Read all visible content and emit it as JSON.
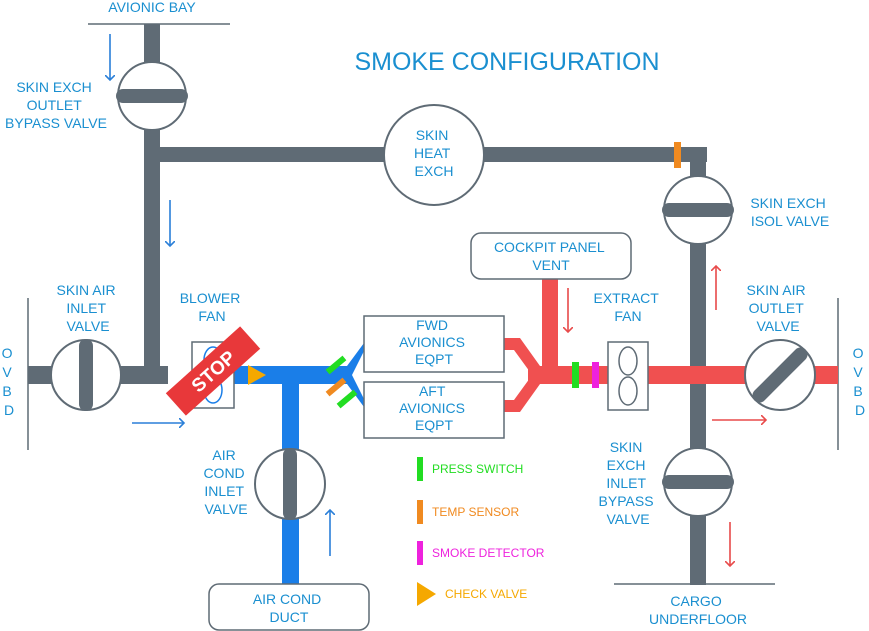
{
  "title": "SMOKE CONFIGURATION",
  "labels": {
    "avionic_bay": "AVIONIC BAY",
    "skin_exch_outlet_bypass_valve": [
      "SKIN EXCH",
      "OUTLET",
      "BYPASS VALVE"
    ],
    "skin_heat_exch": [
      "SKIN",
      "HEAT",
      "EXCH"
    ],
    "skin_exch_isol_valve": [
      "SKIN EXCH",
      "ISOL VALVE"
    ],
    "cockpit_panel_vent": [
      "COCKPIT PANEL",
      "VENT"
    ],
    "skin_air_inlet_valve": [
      "SKIN AIR",
      "INLET",
      "VALVE"
    ],
    "blower_fan": [
      "BLOWER",
      "FAN"
    ],
    "fwd_avionics_eqpt": [
      "FWD",
      "AVIONICS",
      "EQPT"
    ],
    "aft_avionics_eqpt": [
      "AFT",
      "AVIONICS",
      "EQPT"
    ],
    "extract_fan": [
      "EXTRACT",
      "FAN"
    ],
    "skin_air_outlet_valve": [
      "SKIN AIR",
      "OUTLET",
      "VALVE"
    ],
    "ovbd": [
      "O",
      "V",
      "B",
      "D"
    ],
    "air_cond_inlet_valve": [
      "AIR",
      "COND",
      "INLET",
      "VALVE"
    ],
    "skin_exch_inlet_bypass_valve": [
      "SKIN",
      "EXCH",
      "INLET",
      "BYPASS",
      "VALVE"
    ],
    "air_cond_duct": [
      "AIR COND",
      "DUCT"
    ],
    "cargo_underfloor": [
      "CARGO",
      "UNDERFLOOR"
    ],
    "stop": "STOP"
  },
  "legend": [
    {
      "label": "PRESS SWITCH",
      "color": "#22dd22",
      "shape": "bar"
    },
    {
      "label": "TEMP SENSOR",
      "color": "#f08a20",
      "shape": "bar"
    },
    {
      "label": "SMOKE DETECTOR",
      "color": "#ee22dd",
      "shape": "bar"
    },
    {
      "label": "CHECK VALVE",
      "color": "#f5a800",
      "shape": "triangle"
    }
  ],
  "colors": {
    "duct_grey": "#5f6b75",
    "duct_blue": "#1a7ee8",
    "duct_red": "#f05050",
    "text_blue": "#1a8fd0",
    "arrow_blue": "#2a7fd8",
    "arrow_red": "#e84a4a",
    "stop_red": "#e8383a"
  }
}
